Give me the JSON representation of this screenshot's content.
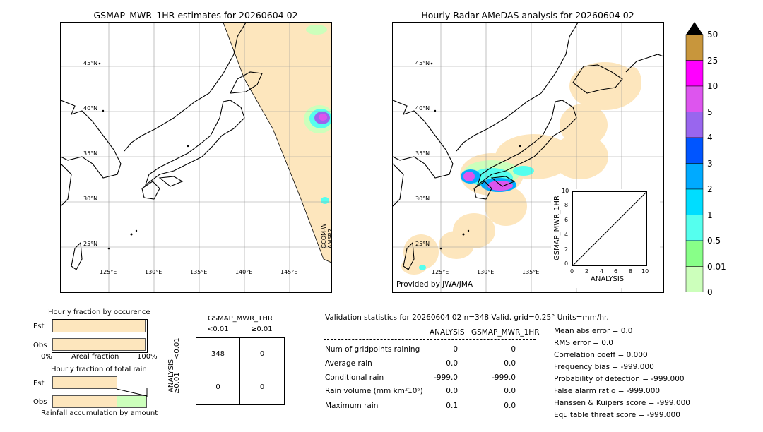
{
  "left_map": {
    "title": "GSMAP_MWR_1HR estimates for 20260604 02",
    "lat_labels": [
      "45°N",
      "40°N",
      "35°N",
      "30°N",
      "25°N"
    ],
    "lon_labels": [
      "125°E",
      "130°E",
      "135°E",
      "140°E",
      "145°E"
    ],
    "satellite_label": "GCOM-W\nAMSR2"
  },
  "right_map": {
    "title": "Hourly Radar-AMeDAS analysis for 20260604 02",
    "lat_labels": [
      "45°N",
      "40°N",
      "35°N",
      "30°N",
      "25°N"
    ],
    "lon_labels": [
      "125°E",
      "130°E",
      "135°E"
    ],
    "provider": "Provided by JWA/JMA"
  },
  "scatter": {
    "xlabel": "ANALYSIS",
    "ylabel": "GSMAP_MWR_1HR",
    "ticks": [
      "0",
      "2",
      "4",
      "6",
      "8",
      "10"
    ],
    "top_tick": "10"
  },
  "colorbar": {
    "labels": [
      "50",
      "25",
      "10",
      "5",
      "4",
      "3",
      "2",
      "1",
      "0.5",
      "0.01",
      "0"
    ],
    "colors": [
      "#c8963c",
      "#ff00ff",
      "#dd55ee",
      "#9966ee",
      "#0055ff",
      "#00aaff",
      "#00ddff",
      "#55ffee",
      "#88ff88",
      "#ccffbb",
      "#fde6bd"
    ]
  },
  "fraction_occurrence": {
    "title": "Hourly fraction by occurence",
    "row_est": "Est",
    "row_obs": "Obs",
    "axis_left": "0%",
    "axis_mid": "Areal fraction",
    "axis_right": "100%"
  },
  "fraction_total": {
    "title": "Hourly fraction of total rain",
    "row_est": "Est",
    "row_obs": "Obs",
    "footer": "Rainfall accumulation by amount"
  },
  "contingency": {
    "title": "GSMAP_MWR_1HR",
    "col1": "<0.01",
    "col2": "≥0.01",
    "side": "ANALYSIS",
    "row1": "<0.01",
    "row2": "≥0.01",
    "cells": [
      "348",
      "0",
      "0",
      "0"
    ]
  },
  "validation": {
    "header": "Validation statistics for 20260604 02  n=348 Valid. grid=0.25° Units=mm/hr.",
    "col_analysis": "ANALYSIS",
    "col_gsmap": "GSMAP_MWR_1HR",
    "rows": [
      {
        "label": "Num of gridpoints raining",
        "analysis": "0",
        "gsmap": "0"
      },
      {
        "label": "Average rain",
        "analysis": "0.0",
        "gsmap": "0.0"
      },
      {
        "label": "Conditional rain",
        "analysis": "-999.0",
        "gsmap": "-999.0"
      },
      {
        "label": "Rain volume (mm km²10⁶)",
        "analysis": "0.0",
        "gsmap": "0.0"
      },
      {
        "label": "Maximum rain",
        "analysis": "0.1",
        "gsmap": "0.0"
      }
    ],
    "scores": [
      "Mean abs error =    0.0",
      "RMS error =    0.0",
      "Correlation coeff =  0.000",
      "Frequency bias = -999.000",
      "Probability of detection = -999.000",
      "False alarm ratio = -999.000",
      "Hanssen & Kuipers score = -999.000",
      "Equitable threat score = -999.000"
    ]
  },
  "chart_data": [
    {
      "type": "table",
      "title": "GSMAP_MWR_1HR",
      "columns": [
        "<0.01",
        "≥0.01"
      ],
      "rows": [
        "<0.01",
        "≥0.01"
      ],
      "values": [
        [
          348,
          0
        ],
        [
          0,
          0
        ]
      ]
    },
    {
      "type": "scatter",
      "xlabel": "ANALYSIS",
      "ylabel": "GSMAP_MWR_1HR",
      "xlim": [
        0,
        10
      ],
      "ylim": [
        0,
        10
      ],
      "x": [],
      "y": []
    },
    {
      "type": "bar",
      "title": "Hourly fraction by occurence",
      "categories": [
        "Est",
        "Obs"
      ],
      "values": [
        1.0,
        1.0
      ]
    }
  ]
}
